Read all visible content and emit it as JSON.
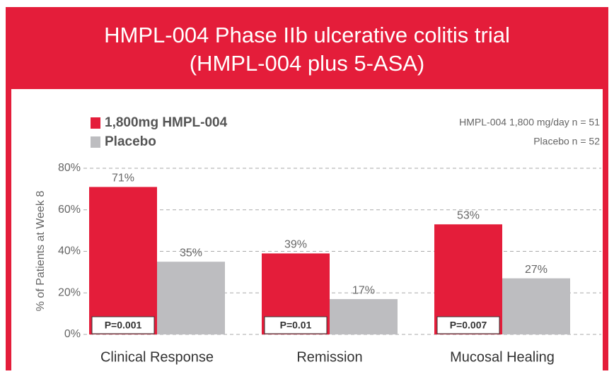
{
  "chart_data": {
    "type": "bar",
    "title": "HMPL-004 Phase IIb ulcerative colitis trial",
    "subtitle": "(HMPL-004 plus 5-ASA)",
    "ylabel": "% of Patients at Week 8",
    "categories": [
      "Clinical Response",
      "Remission",
      "Mucosal Healing"
    ],
    "series": [
      {
        "name": "1,800mg HMPL-004",
        "color": "#e41d3a",
        "values": [
          71,
          39,
          53
        ],
        "value_labels": [
          "71%",
          "39%",
          "53%"
        ]
      },
      {
        "name": "Placebo",
        "color": "#bdbdc0",
        "values": [
          35,
          17,
          27
        ],
        "value_labels": [
          "35%",
          "17%",
          "27%"
        ]
      }
    ],
    "p_values": [
      "P=0.001",
      "P=0.01",
      "P=0.007"
    ],
    "notes": [
      "HMPL-004 1,800 mg/day n = 51",
      "Placebo n = 52"
    ],
    "ylim": [
      0,
      80
    ],
    "yticks": [
      {
        "value": 0,
        "label": "0%"
      },
      {
        "value": 20,
        "label": "20%"
      },
      {
        "value": 40,
        "label": "40%"
      },
      {
        "value": 60,
        "label": "60%"
      },
      {
        "value": 80,
        "label": "80%"
      }
    ],
    "grid": true,
    "legend": "top-left"
  }
}
